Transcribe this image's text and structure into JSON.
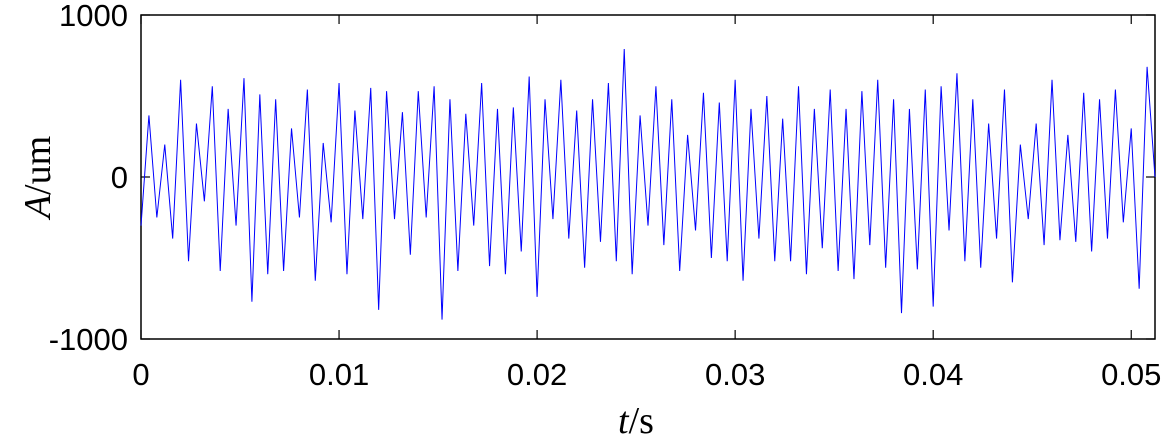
{
  "chart_data": {
    "type": "line",
    "xlabel": {
      "var": "t",
      "unit": "/s"
    },
    "ylabel": {
      "var": "A",
      "unit": "/um"
    },
    "xlim": [
      0,
      0.0512
    ],
    "ylim": [
      -1000,
      1000
    ],
    "xticks": [
      0,
      0.01,
      0.02,
      0.03,
      0.04,
      0.05
    ],
    "xtick_labels": [
      "0",
      "0.01",
      "0.02",
      "0.03",
      "0.04",
      "0.05"
    ],
    "yticks": [
      -1000,
      0,
      1000
    ],
    "ytick_labels": [
      "-1000",
      "0",
      "1000"
    ],
    "grid": false,
    "series": [
      {
        "color": "#0000ff",
        "x": [
          0,
          0.0004,
          0.0008,
          0.0012,
          0.0016,
          0.002,
          0.0024,
          0.0028,
          0.0032,
          0.0036,
          0.004,
          0.0044,
          0.0048,
          0.0052,
          0.0056,
          0.006,
          0.0064,
          0.0068,
          0.0072,
          0.0076,
          0.008,
          0.0084,
          0.0088,
          0.0092,
          0.0096,
          0.01,
          0.0104,
          0.0108,
          0.0112,
          0.0116,
          0.012,
          0.0124,
          0.0128,
          0.0132,
          0.0136,
          0.014,
          0.0144,
          0.0148,
          0.0152,
          0.0156,
          0.016,
          0.0164,
          0.0168,
          0.0172,
          0.0176,
          0.018,
          0.0184,
          0.0188,
          0.0192,
          0.0196,
          0.02,
          0.0204,
          0.0208,
          0.0212,
          0.0216,
          0.022,
          0.0224,
          0.0228,
          0.0232,
          0.0236,
          0.024,
          0.0244,
          0.0248,
          0.0252,
          0.0256,
          0.026,
          0.0264,
          0.0268,
          0.0272,
          0.0276,
          0.028,
          0.0284,
          0.0288,
          0.0292,
          0.0296,
          0.03,
          0.0304,
          0.0308,
          0.0312,
          0.0316,
          0.032,
          0.0324,
          0.0328,
          0.0332,
          0.0336,
          0.034,
          0.0344,
          0.0348,
          0.0352,
          0.0356,
          0.036,
          0.0364,
          0.0368,
          0.0372,
          0.0376,
          0.038,
          0.0384,
          0.0388,
          0.0392,
          0.0396,
          0.04,
          0.0404,
          0.0408,
          0.0412,
          0.0416,
          0.042,
          0.0424,
          0.0428,
          0.0432,
          0.0436,
          0.044,
          0.0444,
          0.0448,
          0.0452,
          0.0456,
          0.046,
          0.0464,
          0.0468,
          0.0472,
          0.0476,
          0.048,
          0.0484,
          0.0488,
          0.0492,
          0.0496,
          0.05,
          0.0504,
          0.0508,
          0.0512
        ],
        "y": [
          -300,
          380,
          -250,
          200,
          -380,
          600,
          -520,
          330,
          -150,
          560,
          -580,
          420,
          -300,
          610,
          -770,
          510,
          -600,
          480,
          -580,
          300,
          -250,
          540,
          -640,
          210,
          -280,
          580,
          -600,
          410,
          -260,
          550,
          -820,
          530,
          -260,
          400,
          -480,
          530,
          -250,
          560,
          -880,
          480,
          -580,
          390,
          -300,
          580,
          -550,
          420,
          -600,
          430,
          -460,
          620,
          -740,
          480,
          -260,
          600,
          -380,
          410,
          -560,
          480,
          -400,
          580,
          -520,
          790,
          -600,
          380,
          -300,
          560,
          -420,
          480,
          -580,
          260,
          -330,
          520,
          -500,
          460,
          -520,
          600,
          -640,
          420,
          -380,
          500,
          -520,
          360,
          -520,
          560,
          -600,
          420,
          -440,
          540,
          -580,
          420,
          -630,
          530,
          -420,
          600,
          -560,
          480,
          -840,
          420,
          -570,
          540,
          -800,
          560,
          -330,
          640,
          -520,
          480,
          -560,
          330,
          -380,
          540,
          -650,
          200,
          -260,
          330,
          -420,
          600,
          -390,
          260,
          -400,
          520,
          -460,
          480,
          -380,
          540,
          -280,
          300,
          -690,
          680,
          0
        ]
      }
    ]
  }
}
